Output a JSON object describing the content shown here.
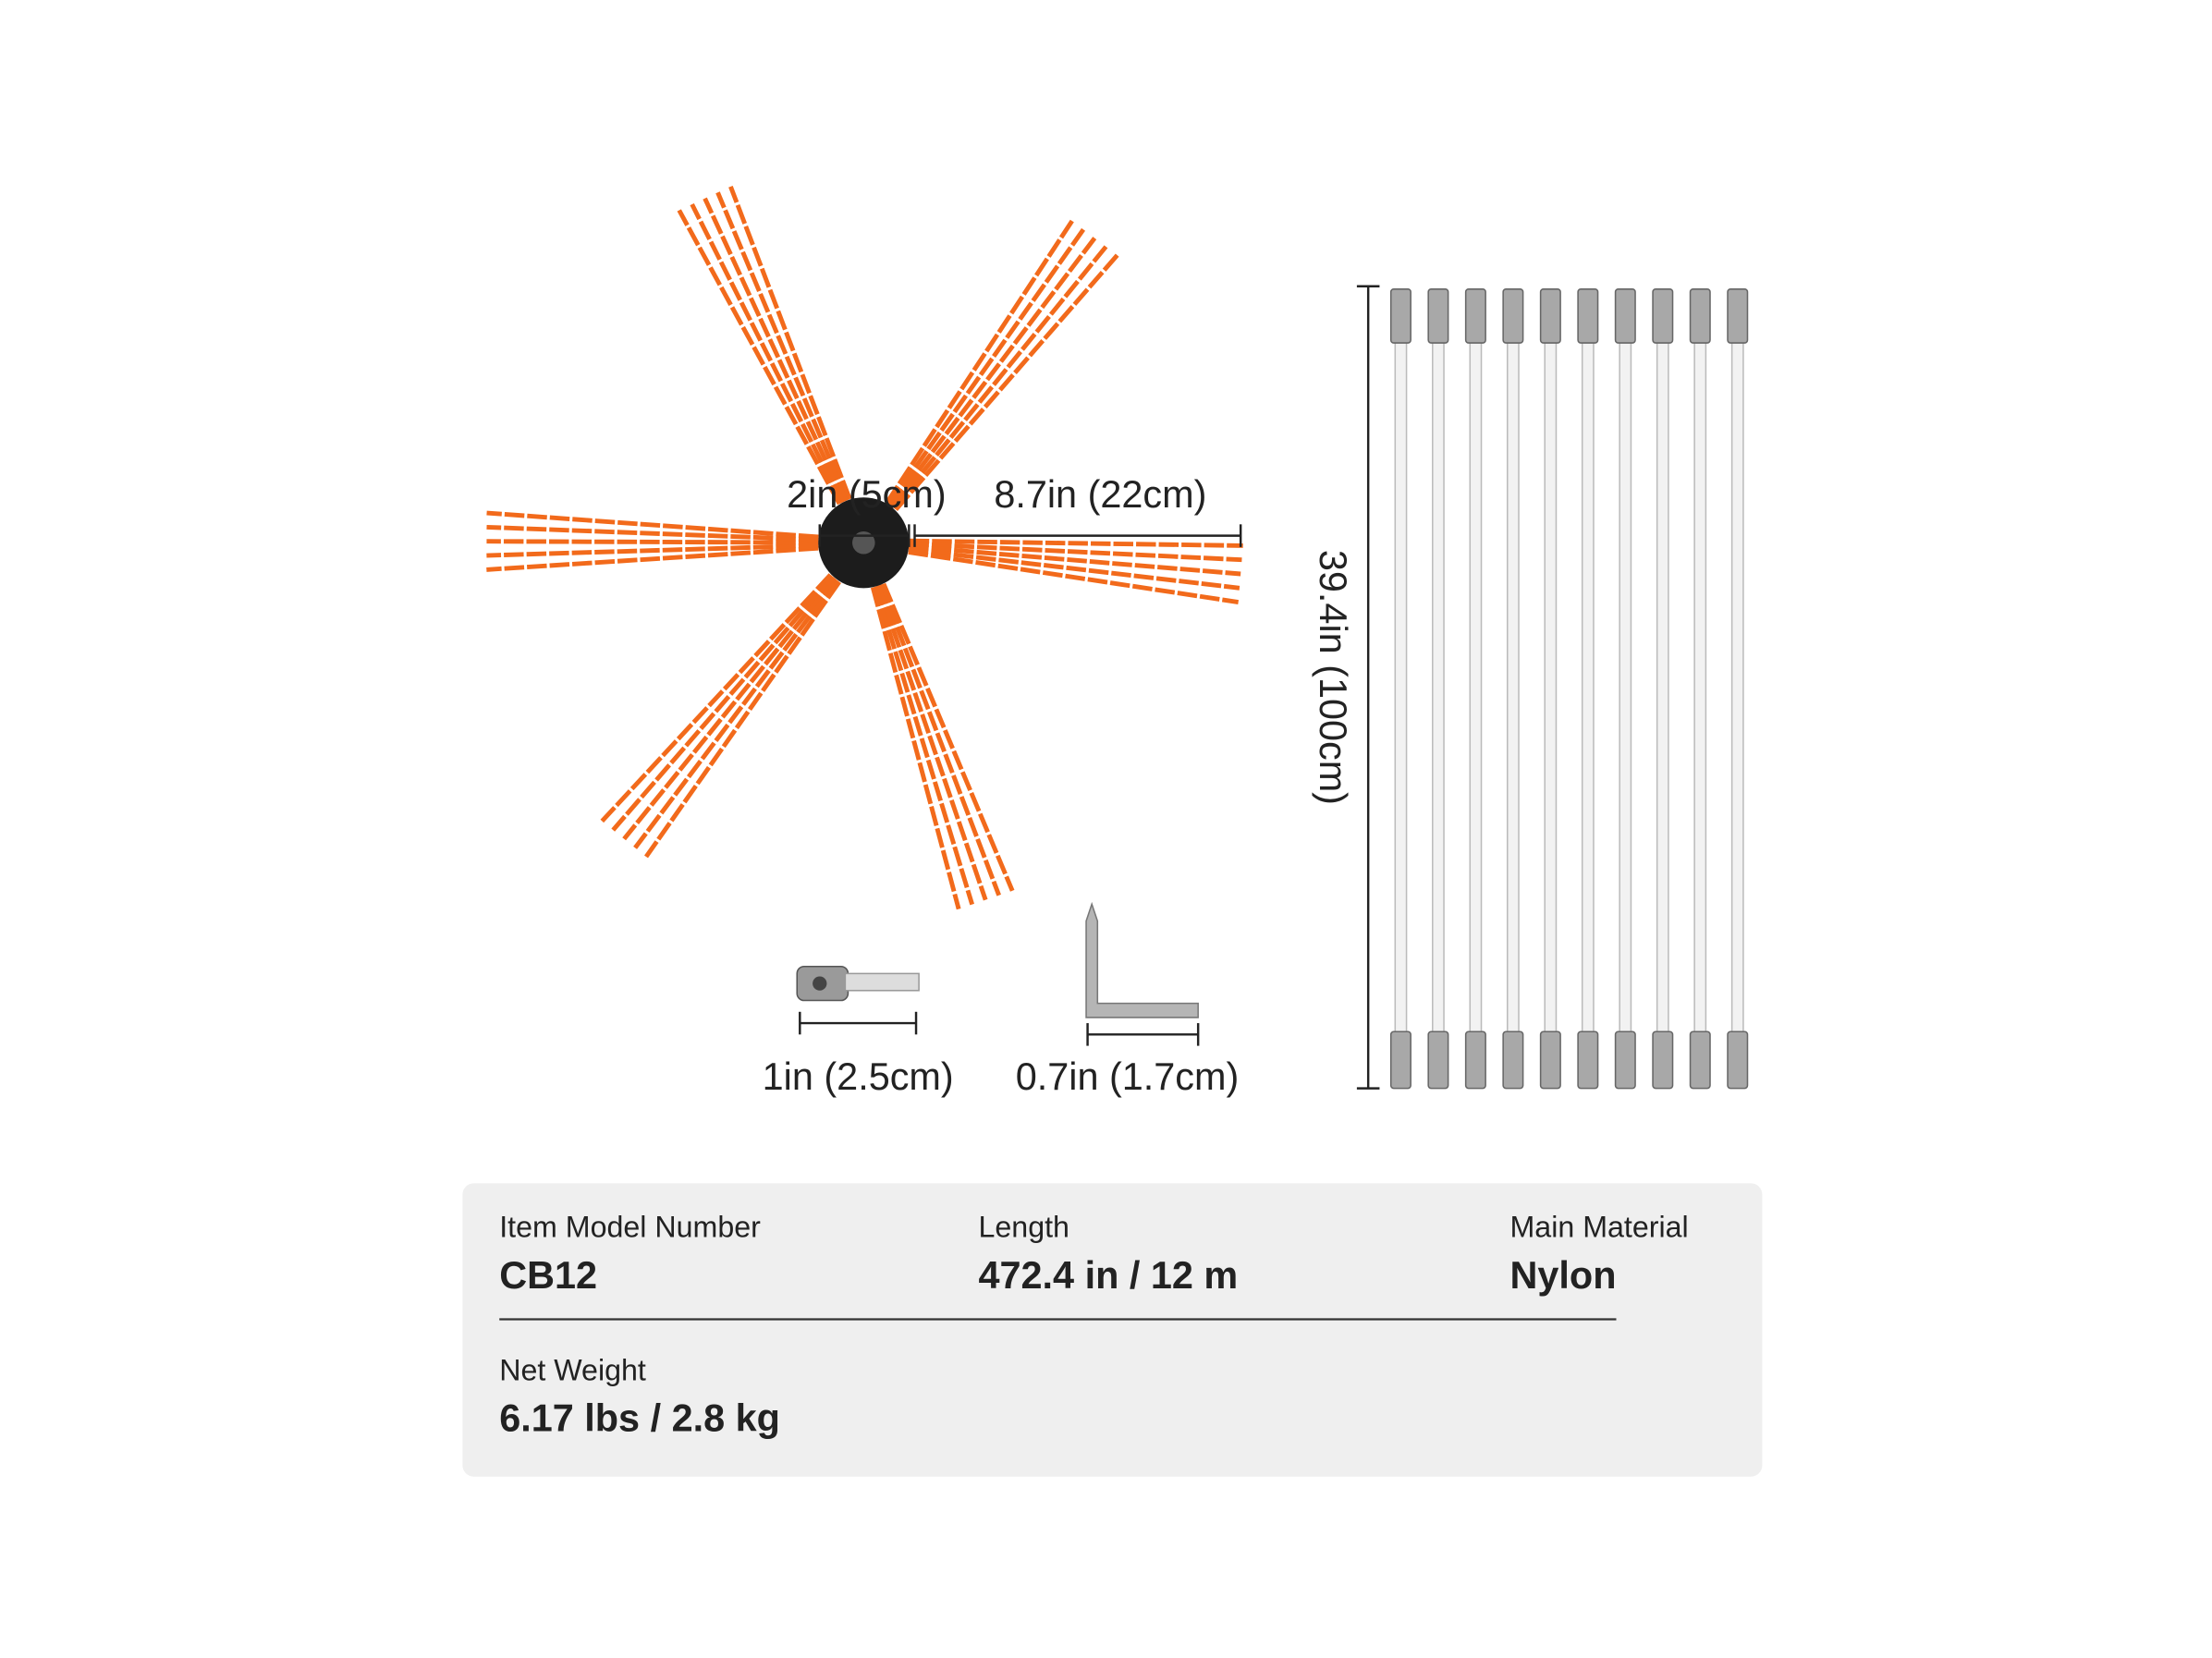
{
  "dimensions": {
    "hub_diameter": "2in (5cm)",
    "bristle_length": "8.7in (22cm)",
    "rod_length": "39.4in (100cm)",
    "adapter_length": "1in (2.5cm)",
    "wrench_length": "0.7in (1.7cm)"
  },
  "specs": {
    "rows": [
      [
        {
          "label": "Item Model Number",
          "value": "CB12"
        },
        {
          "label": "Length",
          "value": "472.4 in / 12 m"
        },
        {
          "label": "Main Material",
          "value": "Nylon"
        }
      ],
      [
        {
          "label": "Net Weight",
          "value": "6.17 lbs / 2.8 kg"
        }
      ]
    ]
  }
}
